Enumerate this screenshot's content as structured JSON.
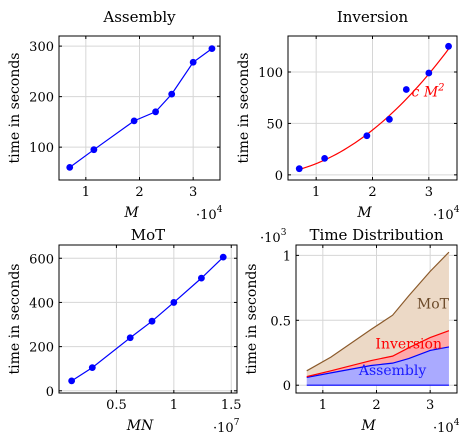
{
  "chart_data": [
    {
      "id": "assembly",
      "type": "line",
      "title": "Assembly",
      "xlabel": "M",
      "ylabel": "time in seconds",
      "x_multiplier": "·10",
      "x_multiplier_exp": "4",
      "xlim": [
        5000,
        35000
      ],
      "ylim": [
        35,
        320
      ],
      "xticks": [
        1,
        2,
        3
      ],
      "yticks": [
        100,
        200,
        300
      ],
      "grid": true,
      "series": [
        {
          "color": "#0000ff",
          "x": [
            7000,
            11500,
            19000,
            23000,
            26000,
            30000,
            33500
          ],
          "y": [
            60,
            95,
            152,
            170,
            205,
            268,
            295
          ]
        }
      ]
    },
    {
      "id": "inversion",
      "type": "line",
      "title": "Inversion",
      "xlabel": "M",
      "ylabel": "time in seconds",
      "x_multiplier": "·10",
      "x_multiplier_exp": "4",
      "xlim": [
        5000,
        35000
      ],
      "ylim": [
        -5,
        135
      ],
      "xticks": [
        1,
        2,
        3
      ],
      "yticks": [
        0,
        50,
        100
      ],
      "grid": true,
      "fit_label": "c M",
      "fit_label_exp": "2",
      "series": [
        {
          "color": "#0000ff",
          "kind": "points",
          "x": [
            7000,
            11500,
            19000,
            23000,
            26000,
            30000,
            33500
          ],
          "y": [
            6,
            16,
            38,
            54,
            83,
            99,
            125
          ]
        },
        {
          "color": "#ff0000",
          "kind": "fit",
          "coef": 1.09e-07,
          "x_range": [
            7000,
            33500
          ]
        }
      ]
    },
    {
      "id": "mot",
      "type": "line",
      "title": "MoT",
      "xlabel": "MN",
      "ylabel": "time in seconds",
      "x_multiplier": "·10",
      "x_multiplier_exp": "7",
      "xlim": [
        0,
        15500000
      ],
      "ylim": [
        -10,
        660
      ],
      "xticks": [
        0.5,
        1,
        1.5
      ],
      "xtick_labels": [
        "0.5",
        "1",
        "1.5"
      ],
      "yticks": [
        0,
        200,
        400,
        600
      ],
      "grid": true,
      "series": [
        {
          "color": "#0000ff",
          "x": [
            1100000,
            2900000,
            6200000,
            8100000,
            10000000,
            12400000,
            14300000
          ],
          "y": [
            45,
            105,
            240,
            315,
            400,
            510,
            605
          ]
        }
      ]
    },
    {
      "id": "distribution",
      "type": "area",
      "title": "Time Distribution",
      "xlabel": "M",
      "ylabel": "time in seconds",
      "x_multiplier": "·10",
      "x_multiplier_exp": "4",
      "y_multiplier": "·10",
      "y_multiplier_exp": "3",
      "xlim": [
        5000,
        35000
      ],
      "ylim": [
        -60,
        1080
      ],
      "xticks": [
        1,
        2,
        3
      ],
      "yticks": [
        0,
        0.5,
        1
      ],
      "ytick_labels": [
        "0",
        "0.5",
        "1"
      ],
      "grid": true,
      "x": [
        7000,
        11500,
        19000,
        23000,
        26000,
        30000,
        33500
      ],
      "series": [
        {
          "name": "Assembly",
          "color": "#0000ff",
          "fill": "#aaaaff",
          "values": [
            60,
            95,
            152,
            170,
            205,
            268,
            295
          ]
        },
        {
          "name": "Inversion",
          "color": "#ff0000",
          "fill": "#ffaaaa",
          "values": [
            6,
            16,
            38,
            54,
            83,
            99,
            125
          ]
        },
        {
          "name": "MoT",
          "color": "#8b5a2b",
          "fill": "#ecd9c6",
          "values": [
            45,
            105,
            240,
            315,
            400,
            510,
            605
          ]
        }
      ]
    }
  ]
}
